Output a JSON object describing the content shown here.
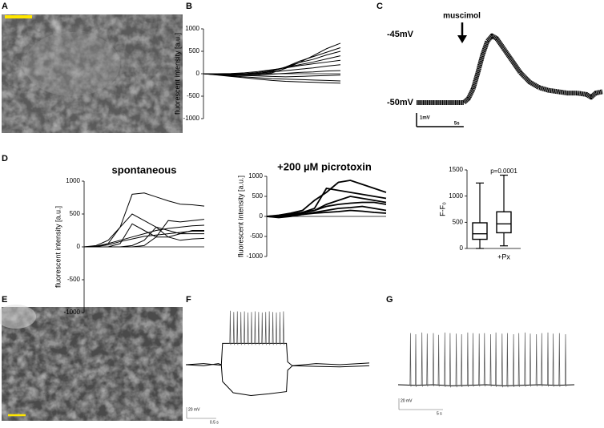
{
  "panels": [
    {
      "label": "A",
      "scalebar_color": "#ffe600"
    },
    {
      "label": "B",
      "chart_data": {
        "type": "line",
        "ylabel": "fluorescent intensity [a.u.]",
        "ylim": [
          -1000,
          1000
        ],
        "yticks": [
          1000,
          500,
          0,
          -500,
          -1000
        ],
        "color": "#000000",
        "series": [
          {
            "values": [
              0,
              -10,
              -20,
              -20,
              -10,
              20,
              120,
              250,
              400,
              560,
              680
            ]
          },
          {
            "values": [
              0,
              -10,
              -20,
              -20,
              0,
              50,
              150,
              280,
              380,
              480,
              580
            ]
          },
          {
            "values": [
              0,
              -5,
              -15,
              -10,
              10,
              60,
              150,
              250,
              320,
              420,
              500
            ]
          },
          {
            "values": [
              0,
              -5,
              -10,
              0,
              30,
              80,
              140,
              200,
              260,
              330,
              400
            ]
          },
          {
            "values": [
              0,
              0,
              5,
              20,
              50,
              90,
              130,
              180,
              220,
              260,
              300
            ]
          },
          {
            "values": [
              0,
              -10,
              -20,
              -10,
              10,
              40,
              70,
              100,
              130,
              170,
              200
            ]
          },
          {
            "values": [
              0,
              -20,
              -40,
              -40,
              -30,
              -10,
              10,
              30,
              40,
              60,
              70
            ]
          },
          {
            "values": [
              0,
              -15,
              -30,
              -40,
              -50,
              -60,
              -70,
              -60,
              -50,
              -40,
              -30
            ]
          },
          {
            "values": [
              0,
              -25,
              -50,
              -70,
              -90,
              -110,
              -120,
              -130,
              -140,
              -150,
              -160
            ]
          },
          {
            "values": [
              0,
              -30,
              -60,
              -90,
              -120,
              -150,
              -170,
              -180,
              -190,
              -200,
              -210
            ]
          }
        ]
      }
    },
    {
      "label": "C",
      "chart_data": {
        "type": "trace",
        "annotation": "muscimol",
        "annotation_x": 4.8,
        "xlim": [
          0,
          19.7
        ],
        "ylim": [
          -51,
          -44
        ],
        "yticks": [
          {
            "value": -45,
            "label": "-45mV"
          },
          {
            "value": -50,
            "label": "-50mV"
          }
        ],
        "x": [
          0,
          2,
          4,
          5,
          5.5,
          6,
          6.5,
          7,
          7.5,
          8,
          8.5,
          9,
          10,
          11,
          12,
          13,
          14,
          15,
          16,
          17,
          18,
          18.5,
          19,
          19.7
        ],
        "series": [
          {
            "color": "#000000",
            "values": [
              -50,
              -50,
              -50,
              -50,
              -49.7,
              -49,
              -47.8,
              -46.5,
              -45.5,
              -45.1,
              -45.3,
              -45.8,
              -46.8,
              -47.8,
              -48.5,
              -48.9,
              -49.1,
              -49.2,
              -49.3,
              -49.3,
              -49.4,
              -49.6,
              -49.3,
              -49.2
            ]
          }
        ],
        "scalebar": {
          "x": {
            "value": 5,
            "label": "5s"
          },
          "y": {
            "value": 1,
            "label": "1mV"
          }
        }
      }
    },
    {
      "label": "D",
      "charts": [
        {
          "chart_data": {
            "type": "line",
            "title": "spontaneous",
            "ylabel": "fluorescent intensity [a.u.]",
            "ylim": [
              -1000,
              1000
            ],
            "yticks": [
              1000,
              500,
              0,
              -500,
              -1000
            ],
            "color": "#000000",
            "series": [
              {
                "values": [
                  0,
                  0,
                  50,
                  300,
                  800,
                  820,
                  760,
                  700,
                  650,
                  640,
                  620
                ]
              },
              {
                "values": [
                  0,
                  20,
                  100,
                  300,
                  500,
                  400,
                  300,
                  250,
                  200,
                  200,
                  200
                ]
              },
              {
                "values": [
                  0,
                  0,
                  0,
                  0,
                  0,
                  20,
                  150,
                  400,
                  380,
                  400,
                  420
                ]
              },
              {
                "values": [
                  0,
                  10,
                  50,
                  100,
                  150,
                  200,
                  250,
                  280,
                  300,
                  320,
                  330
                ]
              },
              {
                "values": [
                  0,
                  0,
                  0,
                  50,
                  350,
                  250,
                  150,
                  150,
                  200,
                  250,
                  250
                ]
              },
              {
                "values": [
                  0,
                  0,
                  0,
                  0,
                  20,
                  100,
                  300,
                  150,
                  100,
                  120,
                  130
                ]
              },
              {
                "values": [
                  0,
                  5,
                  30,
                  80,
                  120,
                  160,
                  180,
                  200,
                  220,
                  240,
                  240
                ]
              }
            ]
          }
        },
        {
          "chart_data": {
            "type": "line",
            "title": "+200 µM picrotoxin",
            "ylabel": "fluorescent intensity [a.u.]",
            "ylim": [
              -1000,
              1000
            ],
            "yticks": [
              1000,
              500,
              0,
              -500,
              -1000
            ],
            "color": "#000000",
            "series": [
              {
                "values": [
                  0,
                  30,
                  80,
                  150,
                  400,
                  600,
                  850,
                  900,
                  800,
                  700,
                  600
                ]
              },
              {
                "values": [
                  0,
                  -20,
                  50,
                  100,
                  200,
                  700,
                  650,
                  600,
                  550,
                  500,
                  450
                ]
              },
              {
                "values": [
                  0,
                  20,
                  60,
                  100,
                  150,
                  300,
                  400,
                  500,
                  450,
                  400,
                  350
                ]
              },
              {
                "values": [
                  0,
                  0,
                  40,
                  80,
                  150,
                  250,
                  300,
                  330,
                  350,
                  350,
                  300
                ]
              },
              {
                "values": [
                  0,
                  -30,
                  0,
                  50,
                  100,
                  150,
                  200,
                  220,
                  250,
                  200,
                  150
                ]
              },
              {
                "values": [
                  0,
                  0,
                  20,
                  50,
                  80,
                  100,
                  120,
                  150,
                  130,
                  100,
                  80
                ]
              }
            ]
          }
        },
        {
          "chart_data": {
            "type": "box",
            "ylabel": "F-F₀",
            "annotation": "p=0.0001",
            "ylim": [
              0,
              1500
            ],
            "yticks": [
              0,
              500,
              1000,
              1500
            ],
            "categories": [
              null,
              "+Px"
            ],
            "min": [
              0,
              50
            ],
            "q1": [
              175,
              300
            ],
            "median": [
              280,
              470
            ],
            "q3": [
              490,
              700
            ],
            "max": [
              1250,
              1400
            ]
          }
        }
      ]
    },
    {
      "label": "E",
      "scalebar_color": "#ffe600"
    },
    {
      "label": "F",
      "chart_data": {
        "type": "spikes",
        "xlim": [
          0,
          3.1
        ],
        "ylim": [
          -130,
          50
        ],
        "series": [
          {
            "color": "#000000",
            "x": [
              0,
              0.3,
              0.55,
              0.6,
              0.62,
              1.7,
              1.72,
              1.8,
              2.2,
              2.6,
              3.1
            ],
            "values": [
              -60,
              -62,
              -58,
              -60,
              -22,
              -22,
              -55,
              -62,
              -58,
              -60,
              -57
            ]
          },
          {
            "color": "#000000",
            "x": [
              0,
              0.3,
              0.6,
              0.62,
              0.8,
              1.1,
              1.4,
              1.7,
              1.72,
              1.8,
              2.2,
              2.6,
              3.1
            ],
            "values": [
              -60,
              -58,
              -61,
              -90,
              -110,
              -115,
              -112,
              -108,
              -70,
              -62,
              -63,
              -64,
              -62
            ]
          }
        ],
        "spike_times": [
          0.75,
          0.81,
          0.87,
          0.93,
          0.99,
          1.05,
          1.11,
          1.17,
          1.23,
          1.29,
          1.35,
          1.41,
          1.47,
          1.53,
          1.59,
          1.65
        ],
        "spike_peaks": [
          36,
          34,
          35,
          34,
          35,
          33,
          34,
          35,
          34,
          33,
          34,
          35,
          34,
          33,
          34,
          35
        ],
        "scalebar": {
          "x": {
            "value": 0.5,
            "label": "0.5 s"
          },
          "y": {
            "value": 20,
            "label": "20 mV"
          }
        }
      }
    },
    {
      "label": "G",
      "chart_data": {
        "type": "spikes",
        "xlim": [
          0,
          20
        ],
        "ylim": [
          -80,
          50
        ],
        "series": [
          {
            "color": "#000000",
            "x": [
              0,
              2,
              4,
              6,
              8,
              10,
              12,
              14,
              16,
              18,
              20
            ],
            "values": [
              -60,
              -61,
              -60,
              -62,
              -61,
              -60,
              -62,
              -61,
              -60,
              -61,
              -60
            ]
          }
        ],
        "spike_times": [
          1.4,
          2.0,
          2.7,
          3.3,
          4.0,
          4.6,
          5.3,
          5.9,
          6.6,
          7.2,
          7.9,
          8.5,
          9.2,
          9.8,
          10.5,
          11.1,
          11.8,
          12.4,
          13.1,
          13.7,
          14.4,
          15.0,
          15.7,
          16.3,
          17.0,
          17.6,
          18.3,
          19.0
        ],
        "spike_peaks": [
          32,
          30,
          33,
          31,
          32,
          29,
          33,
          32,
          31,
          30,
          33,
          32,
          31,
          32,
          30,
          33,
          31,
          32,
          30,
          32,
          33,
          31,
          30,
          32,
          33,
          31,
          32,
          30
        ],
        "scalebar": {
          "x": {
            "value": 5,
            "label": "5 s"
          },
          "y": {
            "value": 20,
            "label": "20 mV"
          }
        }
      }
    }
  ]
}
